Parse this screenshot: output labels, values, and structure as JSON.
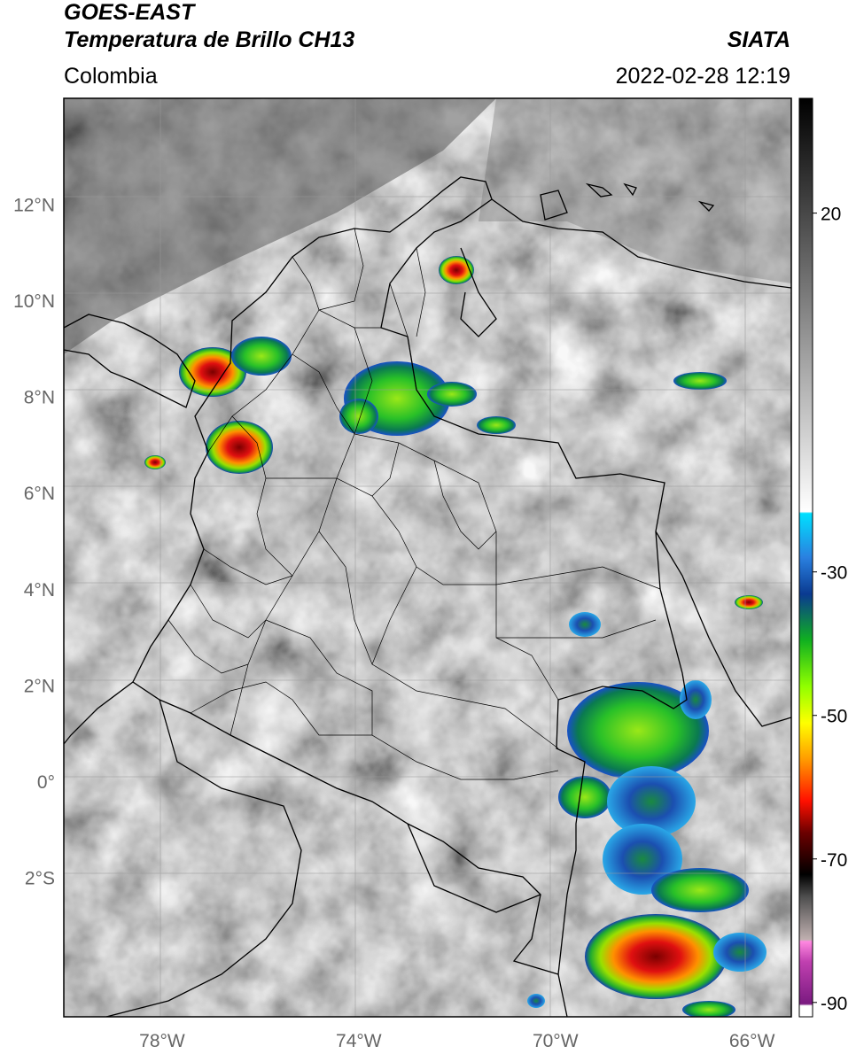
{
  "header": {
    "satellite": "GOES-EAST",
    "product": "Temperatura de Brillo CH13",
    "source": "SIATA",
    "region": "Colombia",
    "datetime": "2022-02-28 12:19"
  },
  "map": {
    "lon_range": [
      -80,
      -65.2
    ],
    "lat_range": [
      -4.9,
      14.2
    ],
    "lon_ticks": [
      {
        "value": -78,
        "label": "78°W"
      },
      {
        "value": -74,
        "label": "74°W"
      },
      {
        "value": -70,
        "label": "70°W"
      },
      {
        "value": -66,
        "label": "66°W"
      }
    ],
    "lat_ticks": [
      {
        "value": 12,
        "label": "12°N"
      },
      {
        "value": 10,
        "label": "10°N"
      },
      {
        "value": 8,
        "label": "8°N"
      },
      {
        "value": 6,
        "label": "6°N"
      },
      {
        "value": 4,
        "label": "4°N"
      },
      {
        "value": 2,
        "label": "2°N"
      },
      {
        "value": 0,
        "label": "0°"
      },
      {
        "value": -2,
        "label": "2°S"
      }
    ],
    "grid": true
  },
  "colorbar": {
    "range": [
      -92,
      36
    ],
    "ticks": [
      {
        "value": 20,
        "label": "20"
      },
      {
        "value": -30,
        "label": "-30"
      },
      {
        "value": -50,
        "label": "-50"
      },
      {
        "value": -70,
        "label": "-70"
      },
      {
        "value": -90,
        "label": "-90"
      }
    ]
  }
}
